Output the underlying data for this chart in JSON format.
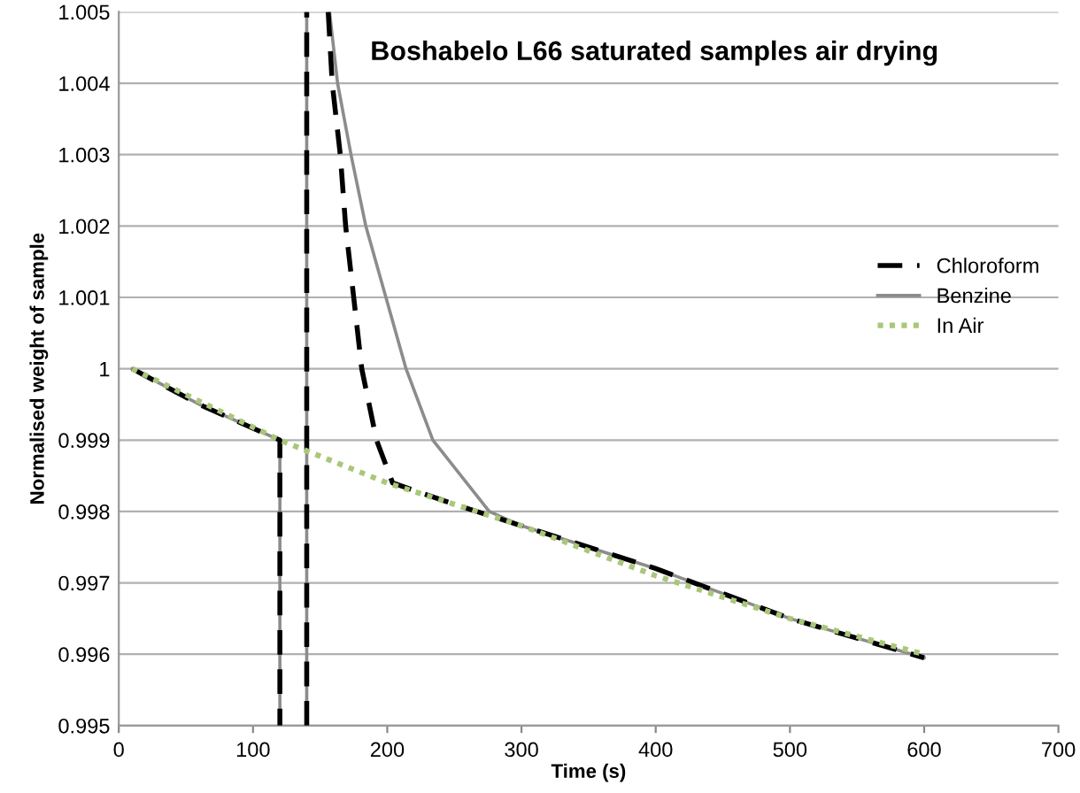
{
  "chart_data": {
    "type": "line",
    "title": "Boshabelo L66 saturated samples air drying",
    "xlabel": "Time (s)",
    "ylabel": "Normalised weight of sample",
    "xlim": [
      0,
      700
    ],
    "ylim": [
      0.995,
      1.005
    ],
    "xticks": [
      0,
      100,
      200,
      300,
      400,
      500,
      600,
      700
    ],
    "yticks": [
      0.995,
      0.996,
      0.997,
      0.998,
      0.999,
      1,
      1.001,
      1.002,
      1.003,
      1.004,
      1.005
    ],
    "grid": "y",
    "legend": "right",
    "marker": "none",
    "series": [
      {
        "name": "Chloroform",
        "color": "#000000",
        "line_style": "dashed",
        "x": [
          10,
          60,
          120,
          120,
          130,
          140,
          140,
          150,
          156,
          159,
          165,
          169,
          175,
          181,
          192,
          204,
          250,
          300,
          400,
          500,
          600
        ],
        "values": [
          1,
          0.9995,
          0.999,
          0.995,
          null,
          0.995,
          1.005,
          null,
          1.005,
          1.004,
          1.003,
          1.002,
          1.001,
          1.0,
          0.999,
          0.9984,
          0.9981,
          0.9978,
          0.9972,
          0.9965,
          0.99595
        ]
      },
      {
        "name": "Benzine",
        "color": "#8c8c8c",
        "line_style": "solid",
        "x": [
          10,
          60,
          120,
          120,
          130,
          140,
          140,
          150,
          157,
          163,
          173,
          184,
          199,
          214,
          234,
          276,
          300,
          400,
          500,
          600
        ],
        "values": [
          1,
          0.9995,
          0.999,
          0.995,
          null,
          0.995,
          1.005,
          null,
          1.005,
          1.004,
          1.003,
          1.002,
          1.001,
          1.0,
          0.999,
          0.998,
          0.9978,
          0.9972,
          0.9965,
          0.99595
        ]
      },
      {
        "name": "In Air",
        "color": "#a9c77a",
        "line_style": "dotted",
        "x": [
          10,
          120,
          200,
          300,
          400,
          500,
          600
        ],
        "values": [
          1,
          0.999,
          0.9984,
          0.9978,
          0.9971,
          0.9965,
          0.996
        ]
      }
    ]
  }
}
